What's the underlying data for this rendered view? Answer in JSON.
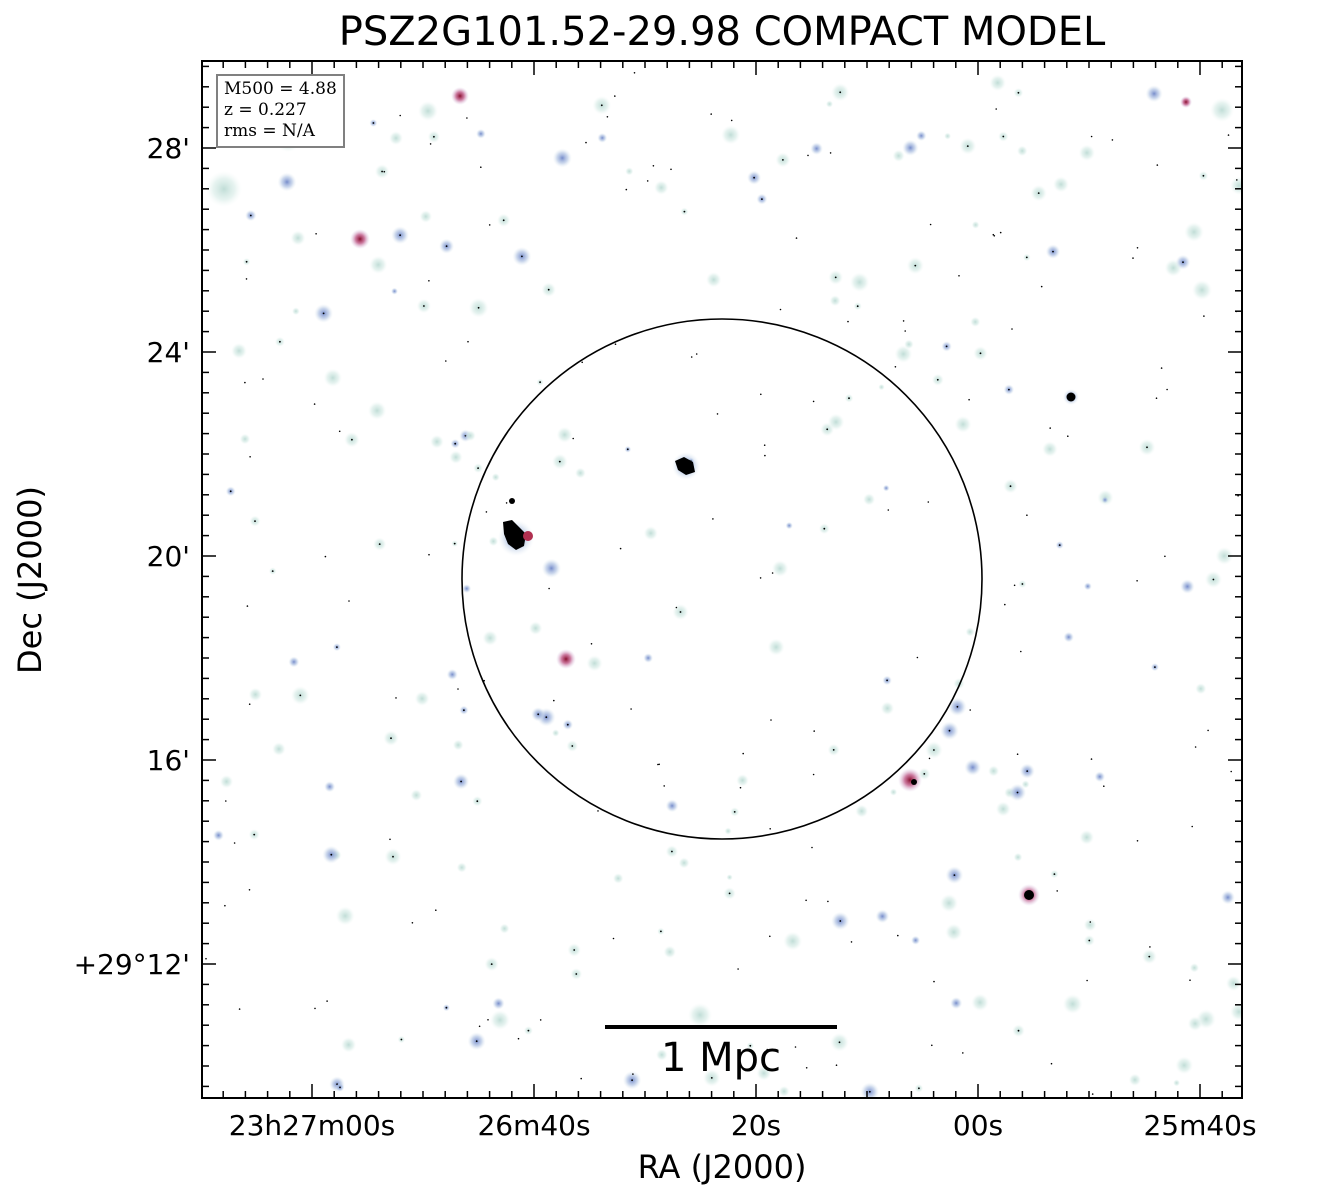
{
  "title": "PSZ2G101.52-29.98 COMPACT MODEL",
  "axes": {
    "xlabel": "RA (J2000)",
    "ylabel": "Dec (J2000)",
    "x_ticks": [
      "23h27m00s",
      "26m40s",
      "20s",
      "00s",
      "25m40s"
    ],
    "y_ticks": [
      "28'",
      "24'",
      "20'",
      "16'",
      "+29°12'"
    ]
  },
  "info": {
    "mass": "M500 = 4.88",
    "redshift": "z = 0.227",
    "rms": "rms = N/A"
  },
  "scale_bar": {
    "label": "1 Mpc"
  },
  "colors": {
    "background": "#ffffff",
    "frame": "#000000",
    "source_halo": "#cfe6e0",
    "source_blue": "#8fa8d8",
    "source_red": "#c0304a",
    "source_core": "#000000"
  }
}
